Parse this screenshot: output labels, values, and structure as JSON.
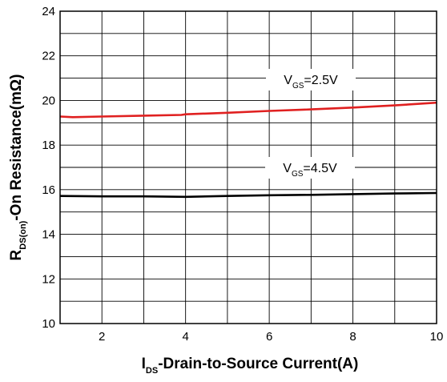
{
  "chart_data": {
    "type": "line",
    "title": "",
    "xlabel": {
      "main": "I",
      "sub": "DS",
      "rest": "-Drain-to-Source Current(A)"
    },
    "ylabel": {
      "main": "R",
      "sub": "DS(on)",
      "rest": "-On Resistance(mΩ)"
    },
    "xlim": [
      1,
      10
    ],
    "ylim": [
      10,
      24
    ],
    "xticks": [
      2,
      4,
      6,
      8,
      10
    ],
    "yticks": [
      10,
      12,
      14,
      16,
      18,
      20,
      22,
      24
    ],
    "grid": true,
    "series": [
      {
        "name": "VGS=2.5V",
        "label": {
          "main": "V",
          "sub": "GS",
          "rest": "=2.5V"
        },
        "color": "#e02020",
        "x": [
          1,
          1.3,
          2,
          3,
          3.9,
          4,
          5,
          6,
          7,
          8,
          9,
          10
        ],
        "y": [
          19.28,
          19.25,
          19.28,
          19.32,
          19.35,
          19.38,
          19.45,
          19.53,
          19.6,
          19.68,
          19.78,
          19.9
        ]
      },
      {
        "name": "VGS=4.5V",
        "label": {
          "main": "V",
          "sub": "GS",
          "rest": "=4.5V"
        },
        "color": "#000000",
        "x": [
          1,
          2,
          3,
          4,
          5,
          6,
          7,
          8,
          9,
          10
        ],
        "y": [
          15.72,
          15.7,
          15.7,
          15.68,
          15.72,
          15.75,
          15.77,
          15.8,
          15.83,
          15.85
        ]
      }
    ]
  }
}
